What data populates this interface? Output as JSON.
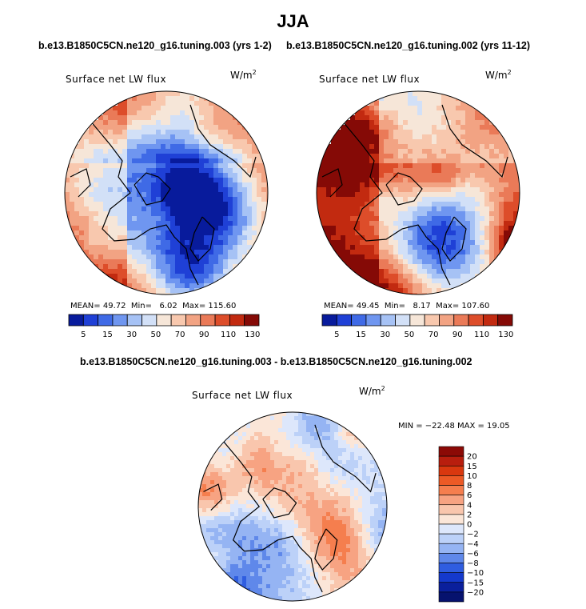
{
  "title": "JJA",
  "chart_data": [
    {
      "type": "heatmap",
      "projection": "north-polar-stereographic",
      "case_title": "b.e13.B1850C5CN.ne120_g16.tuning.003 (yrs 1-2)",
      "variable": "Surface net LW flux",
      "units": "W/m",
      "units_exponent": "2",
      "stats": {
        "mean_label": "MEAN=",
        "mean": "49.72",
        "min_label": "Min=",
        "min": "6.02",
        "max_label": "Max=",
        "max": "115.60"
      },
      "colorbar_levels": [
        "5",
        "15",
        "30",
        "50",
        "70",
        "90",
        "110",
        "130"
      ],
      "colorbar_colors": [
        "#081b9c",
        "#1f40d6",
        "#3f6ae6",
        "#6f96f0",
        "#a6c2f5",
        "#d2e0f7",
        "#f6e6d8",
        "#f8c8ae",
        "#f2a383",
        "#ea7a58",
        "#dd4d2a",
        "#c22a10",
        "#850a06"
      ]
    },
    {
      "type": "heatmap",
      "projection": "north-polar-stereographic",
      "case_title": "b.e13.B1850C5CN.ne120_g16.tuning.002 (yrs 11-12)",
      "variable": "Surface net LW flux",
      "units": "W/m",
      "units_exponent": "2",
      "stats": {
        "mean_label": "MEAN=",
        "mean": "49.45",
        "min_label": "Min=",
        "min": "8.17",
        "max_label": "Max=",
        "max": "107.60"
      },
      "colorbar_levels": [
        "5",
        "15",
        "30",
        "50",
        "70",
        "90",
        "110",
        "130"
      ],
      "colorbar_colors": [
        "#081b9c",
        "#1f40d6",
        "#3f6ae6",
        "#6f96f0",
        "#a6c2f5",
        "#d2e0f7",
        "#f6e6d8",
        "#f8c8ae",
        "#f2a383",
        "#ea7a58",
        "#dd4d2a",
        "#c22a10",
        "#850a06"
      ]
    },
    {
      "type": "heatmap",
      "projection": "north-polar-stereographic",
      "case_title": "b.e13.B1850C5CN.ne120_g16.tuning.003 - b.e13.B1850C5CN.ne120_g16.tuning.002",
      "variable": "Surface net LW flux",
      "units": "W/m",
      "units_exponent": "2",
      "stats_text": "MIN = −22.48 MAX =  19.05",
      "colorbar_levels": [
        "20",
        "15",
        "10",
        "8",
        "6",
        "4",
        "2",
        "0",
        "−2",
        "−4",
        "−6",
        "−8",
        "−10",
        "−15",
        "−20"
      ],
      "colorbar_colors": [
        "#8c0a06",
        "#b81e0e",
        "#d9380f",
        "#ec5a26",
        "#f57e4e",
        "#f7a382",
        "#f9c6ad",
        "#fbe6d8",
        "#dde7fb",
        "#bcd1f8",
        "#95b4f3",
        "#5f88ea",
        "#2f5de0",
        "#1439cc",
        "#0a1f9c",
        "#06126e"
      ]
    }
  ]
}
